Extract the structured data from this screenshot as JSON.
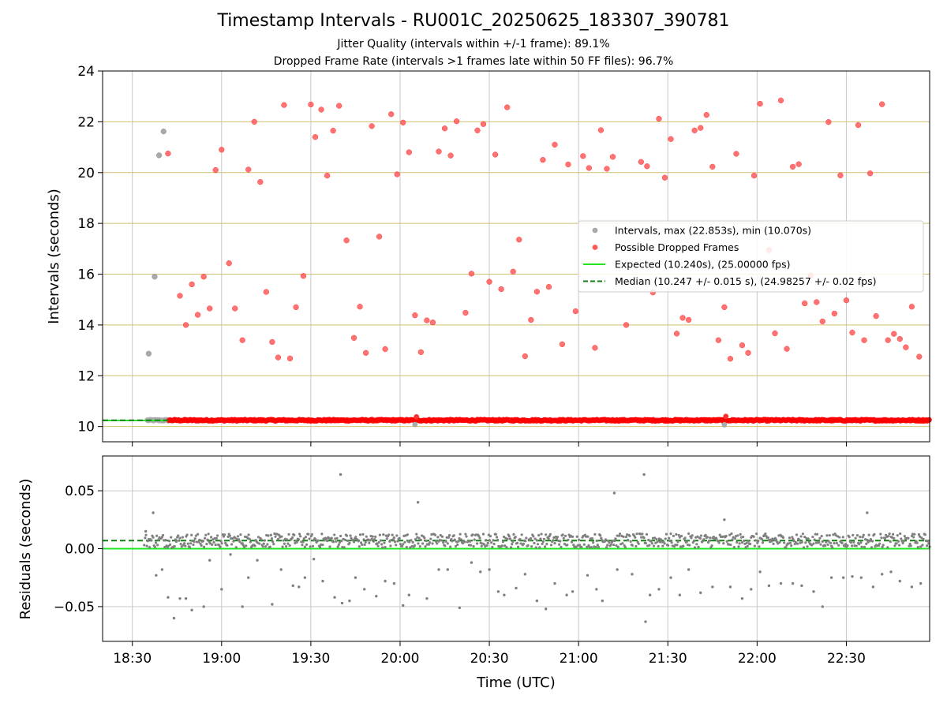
{
  "figure": {
    "title": "Timestamp Intervals - RU001C_20250625_183307_390781",
    "subtitle_1": "Jitter Quality (intervals within +/-1 frame): 89.1%",
    "subtitle_2": "Dropped Frame Rate (intervals >1 frames late within 50 FF files): 96.7%"
  },
  "chart_data": [
    {
      "type": "scatter",
      "panel": "top",
      "ylabel": "Intervals (seconds)",
      "xlabel": "",
      "xlim": [
        "18:20",
        "22:58"
      ],
      "ylim": [
        9.4,
        24
      ],
      "yticks": [
        10,
        12,
        14,
        16,
        18,
        20,
        22,
        24
      ],
      "ytick_labels": [
        "10",
        "12",
        "14",
        "16",
        "18",
        "20",
        "22",
        "24"
      ],
      "grid": "x-axis gray, y-axis gold",
      "legend_position": "center-right",
      "colors": {
        "intervals": "#a9a9a9",
        "dropped": "#ff5a5a",
        "expected": "#22e622",
        "median": "#108010",
        "grid_y": "#d2c070",
        "grid_x": "#c8c8c8"
      },
      "baseline": {
        "x_start": "18:35",
        "x_end": "22:58",
        "value": 10.247,
        "description": "dense band of intervals at ~10.25 s across full time range"
      },
      "expected_line": {
        "value": 10.24,
        "x_start": "18:20",
        "x_end": "18:42"
      },
      "median_line": {
        "value": 10.247,
        "x_start": "18:20",
        "x_end": "18:42"
      },
      "series": [
        {
          "name": "Intervals, max (22.853s), min (10.070s)",
          "points": [
            {
              "x": "18:35.5",
              "y": 12.87
            },
            {
              "x": "18:37.5",
              "y": 15.9
            },
            {
              "x": "18:39",
              "y": 20.68
            },
            {
              "x": "18:40.5",
              "y": 21.62
            }
          ]
        },
        {
          "name": "Possible Dropped Frames",
          "points": [
            {
              "x": "18:42",
              "y": 20.75
            },
            {
              "x": "18:46",
              "y": 15.15
            },
            {
              "x": "18:48",
              "y": 14.0
            },
            {
              "x": "18:50",
              "y": 15.6
            },
            {
              "x": "18:52",
              "y": 14.4
            },
            {
              "x": "18:54",
              "y": 15.9
            },
            {
              "x": "18:56",
              "y": 14.65
            },
            {
              "x": "18:58",
              "y": 20.1
            },
            {
              "x": "19:00",
              "y": 20.9
            },
            {
              "x": "19:02.5",
              "y": 16.43
            },
            {
              "x": "19:04.5",
              "y": 14.65
            },
            {
              "x": "19:07",
              "y": 13.4
            },
            {
              "x": "19:09",
              "y": 20.12
            },
            {
              "x": "19:11",
              "y": 22.0
            },
            {
              "x": "19:13",
              "y": 19.63
            },
            {
              "x": "19:15",
              "y": 15.3
            },
            {
              "x": "19:17",
              "y": 13.33
            },
            {
              "x": "19:19",
              "y": 12.72
            },
            {
              "x": "19:21",
              "y": 22.66
            },
            {
              "x": "19:23",
              "y": 12.68
            },
            {
              "x": "19:25",
              "y": 14.7
            },
            {
              "x": "19:27.5",
              "y": 15.93
            },
            {
              "x": "19:30",
              "y": 22.68
            },
            {
              "x": "19:31.5",
              "y": 21.4
            },
            {
              "x": "19:33.5",
              "y": 22.48
            },
            {
              "x": "19:35.5",
              "y": 19.88
            },
            {
              "x": "19:37.5",
              "y": 21.65
            },
            {
              "x": "19:39.5",
              "y": 22.63
            },
            {
              "x": "19:42",
              "y": 17.33
            },
            {
              "x": "19:44.5",
              "y": 13.49
            },
            {
              "x": "19:46.5",
              "y": 14.72
            },
            {
              "x": "19:48.5",
              "y": 12.9
            },
            {
              "x": "19:50.5",
              "y": 21.83
            },
            {
              "x": "19:53",
              "y": 17.48
            },
            {
              "x": "19:55",
              "y": 13.05
            },
            {
              "x": "19:57",
              "y": 22.3
            },
            {
              "x": "19:59",
              "y": 19.93
            },
            {
              "x": "20:01",
              "y": 21.97
            },
            {
              "x": "20:03",
              "y": 20.8
            },
            {
              "x": "20:05",
              "y": 14.38
            },
            {
              "x": "20:07",
              "y": 12.93
            },
            {
              "x": "20:09",
              "y": 14.18
            },
            {
              "x": "20:11",
              "y": 14.1
            },
            {
              "x": "20:13",
              "y": 20.83
            },
            {
              "x": "20:15",
              "y": 21.74
            },
            {
              "x": "20:17",
              "y": 20.67
            },
            {
              "x": "20:19",
              "y": 22.02
            },
            {
              "x": "20:22",
              "y": 14.48
            },
            {
              "x": "20:24",
              "y": 16.02
            },
            {
              "x": "20:26",
              "y": 21.66
            },
            {
              "x": "20:28",
              "y": 21.91
            },
            {
              "x": "20:30",
              "y": 15.7
            },
            {
              "x": "20:32",
              "y": 20.71
            },
            {
              "x": "20:34",
              "y": 15.41
            },
            {
              "x": "20:36",
              "y": 22.57
            },
            {
              "x": "20:38",
              "y": 16.1
            },
            {
              "x": "20:40",
              "y": 17.36
            },
            {
              "x": "20:42",
              "y": 12.77
            },
            {
              "x": "20:44",
              "y": 14.2
            },
            {
              "x": "20:46",
              "y": 15.31
            },
            {
              "x": "20:48",
              "y": 20.5
            },
            {
              "x": "20:50",
              "y": 15.5
            },
            {
              "x": "20:52",
              "y": 21.1
            },
            {
              "x": "20:54.5",
              "y": 13.24
            },
            {
              "x": "20:56.5",
              "y": 20.32
            },
            {
              "x": "20:59",
              "y": 14.54
            },
            {
              "x": "21:01.5",
              "y": 20.65
            },
            {
              "x": "21:03.5",
              "y": 20.18
            },
            {
              "x": "21:05.5",
              "y": 13.1
            },
            {
              "x": "21:07.5",
              "y": 21.67
            },
            {
              "x": "21:09.5",
              "y": 20.15
            },
            {
              "x": "21:11.5",
              "y": 20.62
            },
            {
              "x": "21:16",
              "y": 14.0
            },
            {
              "x": "21:21",
              "y": 20.42
            },
            {
              "x": "21:23",
              "y": 20.25
            },
            {
              "x": "21:25",
              "y": 15.28
            },
            {
              "x": "21:27",
              "y": 22.12
            },
            {
              "x": "21:29",
              "y": 19.8
            },
            {
              "x": "21:31",
              "y": 21.32
            },
            {
              "x": "21:33",
              "y": 13.66
            },
            {
              "x": "21:35",
              "y": 14.28
            },
            {
              "x": "21:37",
              "y": 14.2
            },
            {
              "x": "21:39",
              "y": 21.66
            },
            {
              "x": "21:41",
              "y": 21.76
            },
            {
              "x": "21:43",
              "y": 22.27
            },
            {
              "x": "21:45",
              "y": 20.23
            },
            {
              "x": "21:47",
              "y": 13.4
            },
            {
              "x": "21:49",
              "y": 14.7
            },
            {
              "x": "21:51",
              "y": 12.67
            },
            {
              "x": "21:53",
              "y": 20.74
            },
            {
              "x": "21:55",
              "y": 13.2
            },
            {
              "x": "21:57",
              "y": 12.9
            },
            {
              "x": "21:59",
              "y": 19.88
            },
            {
              "x": "22:01",
              "y": 22.71
            },
            {
              "x": "22:04",
              "y": 16.95
            },
            {
              "x": "22:06",
              "y": 13.67
            },
            {
              "x": "22:08",
              "y": 22.84
            },
            {
              "x": "22:10",
              "y": 13.06
            },
            {
              "x": "22:12",
              "y": 20.23
            },
            {
              "x": "22:14",
              "y": 20.33
            },
            {
              "x": "22:16",
              "y": 14.85
            },
            {
              "x": "22:18",
              "y": 15.95
            },
            {
              "x": "22:20",
              "y": 14.9
            },
            {
              "x": "22:22",
              "y": 14.14
            },
            {
              "x": "22:24",
              "y": 21.99
            },
            {
              "x": "22:26",
              "y": 14.45
            },
            {
              "x": "22:28",
              "y": 19.89
            },
            {
              "x": "22:30",
              "y": 14.97
            },
            {
              "x": "22:32",
              "y": 13.7
            },
            {
              "x": "22:34",
              "y": 21.87
            },
            {
              "x": "22:36",
              "y": 13.4
            },
            {
              "x": "22:38",
              "y": 19.97
            },
            {
              "x": "22:40",
              "y": 14.35
            },
            {
              "x": "22:42",
              "y": 22.69
            },
            {
              "x": "22:44",
              "y": 13.4
            },
            {
              "x": "22:46",
              "y": 13.65
            },
            {
              "x": "22:48",
              "y": 13.45
            },
            {
              "x": "22:50",
              "y": 13.12
            },
            {
              "x": "22:52",
              "y": 14.72
            },
            {
              "x": "22:54.5",
              "y": 12.75
            }
          ]
        }
      ],
      "baseline_outliers": [
        {
          "x": "20:05",
          "y": 10.08,
          "series": "Intervals"
        },
        {
          "x": "21:49",
          "y": 10.07,
          "series": "Intervals"
        },
        {
          "x": "20:05.5",
          "y": 10.38,
          "series": "Possible Dropped Frames"
        },
        {
          "x": "21:49.5",
          "y": 10.4,
          "series": "Possible Dropped Frames"
        }
      ],
      "legend_entries": [
        {
          "label": "Intervals, max (22.853s), min (10.070s)",
          "style": "gray dot"
        },
        {
          "label": "Possible Dropped Frames",
          "style": "red dot"
        },
        {
          "label": "Expected (10.240s), (25.00000 fps)",
          "style": "solid green line"
        },
        {
          "label": "Median (10.247 +/- 0.015 s), (24.98257 +/- 0.02 fps)",
          "style": "dashed dark green line"
        }
      ]
    },
    {
      "type": "scatter",
      "panel": "bottom",
      "ylabel": "Residuals (seconds)",
      "xlabel": "Time (UTC)",
      "xlim": [
        "18:20",
        "22:58"
      ],
      "ylim": [
        -0.08,
        0.08
      ],
      "yticks": [
        -0.05,
        0.0,
        0.05
      ],
      "ytick_labels": [
        "−0.05",
        "0.00",
        "0.05"
      ],
      "xticks": [
        "18:30",
        "19:00",
        "19:30",
        "20:00",
        "20:30",
        "21:00",
        "21:30",
        "22:00",
        "22:30"
      ],
      "grid": "both axes gray",
      "colors": {
        "points": "#808080",
        "zero_line": "#22e622",
        "median_line": "#108010"
      },
      "zero_line": 0.0,
      "median_offset": 0.007,
      "baseline": {
        "x_start": "18:34",
        "x_end": "22:58",
        "center": 0.007,
        "spread": 0.006
      },
      "points": [
        {
          "x": "18:34.5",
          "y": 0.015
        },
        {
          "x": "18:37",
          "y": 0.031
        },
        {
          "x": "18:38",
          "y": -0.023
        },
        {
          "x": "18:40",
          "y": -0.018
        },
        {
          "x": "18:42",
          "y": -0.042
        },
        {
          "x": "18:44",
          "y": -0.06
        },
        {
          "x": "18:46",
          "y": -0.043
        },
        {
          "x": "18:48",
          "y": -0.043
        },
        {
          "x": "18:50",
          "y": -0.053
        },
        {
          "x": "18:54",
          "y": -0.05
        },
        {
          "x": "18:56",
          "y": -0.01
        },
        {
          "x": "19:00",
          "y": -0.035
        },
        {
          "x": "19:03",
          "y": -0.005
        },
        {
          "x": "19:07",
          "y": -0.05
        },
        {
          "x": "19:09",
          "y": -0.025
        },
        {
          "x": "19:12",
          "y": -0.01
        },
        {
          "x": "19:17",
          "y": -0.048
        },
        {
          "x": "19:20",
          "y": -0.018
        },
        {
          "x": "19:24",
          "y": -0.032
        },
        {
          "x": "19:26",
          "y": -0.033
        },
        {
          "x": "19:28",
          "y": -0.025
        },
        {
          "x": "19:31",
          "y": -0.009
        },
        {
          "x": "19:34",
          "y": -0.028
        },
        {
          "x": "19:38",
          "y": -0.042
        },
        {
          "x": "19:40",
          "y": 0.064
        },
        {
          "x": "19:40.5",
          "y": -0.047
        },
        {
          "x": "19:43",
          "y": -0.045
        },
        {
          "x": "19:45",
          "y": -0.025
        },
        {
          "x": "19:48",
          "y": -0.035
        },
        {
          "x": "19:52",
          "y": -0.041
        },
        {
          "x": "19:55",
          "y": -0.028
        },
        {
          "x": "19:58",
          "y": -0.03
        },
        {
          "x": "20:01",
          "y": -0.049
        },
        {
          "x": "20:03",
          "y": -0.04
        },
        {
          "x": "20:06",
          "y": 0.04
        },
        {
          "x": "20:09",
          "y": -0.043
        },
        {
          "x": "20:13",
          "y": -0.018
        },
        {
          "x": "20:16",
          "y": -0.018
        },
        {
          "x": "20:20",
          "y": -0.051
        },
        {
          "x": "20:24",
          "y": -0.012
        },
        {
          "x": "20:27",
          "y": -0.02
        },
        {
          "x": "20:30",
          "y": -0.018
        },
        {
          "x": "20:33",
          "y": -0.037
        },
        {
          "x": "20:35",
          "y": -0.04
        },
        {
          "x": "20:39",
          "y": -0.034
        },
        {
          "x": "20:42",
          "y": -0.022
        },
        {
          "x": "20:46",
          "y": -0.045
        },
        {
          "x": "20:49",
          "y": -0.052
        },
        {
          "x": "20:52",
          "y": -0.03
        },
        {
          "x": "20:56",
          "y": -0.04
        },
        {
          "x": "20:58",
          "y": -0.037
        },
        {
          "x": "21:03",
          "y": -0.023
        },
        {
          "x": "21:06",
          "y": -0.035
        },
        {
          "x": "21:08",
          "y": -0.045
        },
        {
          "x": "21:12",
          "y": 0.048
        },
        {
          "x": "21:13",
          "y": -0.018
        },
        {
          "x": "21:18",
          "y": -0.022
        },
        {
          "x": "21:22",
          "y": 0.064
        },
        {
          "x": "21:22.5",
          "y": -0.063
        },
        {
          "x": "21:24",
          "y": -0.04
        },
        {
          "x": "21:27",
          "y": -0.035
        },
        {
          "x": "21:31",
          "y": -0.025
        },
        {
          "x": "21:34",
          "y": -0.04
        },
        {
          "x": "21:37",
          "y": -0.018
        },
        {
          "x": "21:41",
          "y": -0.038
        },
        {
          "x": "21:45",
          "y": -0.033
        },
        {
          "x": "21:49",
          "y": 0.025
        },
        {
          "x": "21:51",
          "y": -0.033
        },
        {
          "x": "21:55",
          "y": -0.043
        },
        {
          "x": "21:58",
          "y": -0.035
        },
        {
          "x": "22:01",
          "y": -0.02
        },
        {
          "x": "22:04",
          "y": -0.032
        },
        {
          "x": "22:08",
          "y": -0.03
        },
        {
          "x": "22:12",
          "y": -0.03
        },
        {
          "x": "22:15",
          "y": -0.032
        },
        {
          "x": "22:19",
          "y": -0.037
        },
        {
          "x": "22:22",
          "y": -0.05
        },
        {
          "x": "22:25",
          "y": -0.025
        },
        {
          "x": "22:29",
          "y": -0.025
        },
        {
          "x": "22:32",
          "y": -0.024
        },
        {
          "x": "22:35",
          "y": -0.025
        },
        {
          "x": "22:37",
          "y": 0.031
        },
        {
          "x": "22:39",
          "y": -0.033
        },
        {
          "x": "22:42",
          "y": -0.022
        },
        {
          "x": "22:45",
          "y": -0.02
        },
        {
          "x": "22:48",
          "y": -0.028
        },
        {
          "x": "22:52",
          "y": -0.033
        },
        {
          "x": "22:55",
          "y": -0.03
        }
      ]
    }
  ]
}
